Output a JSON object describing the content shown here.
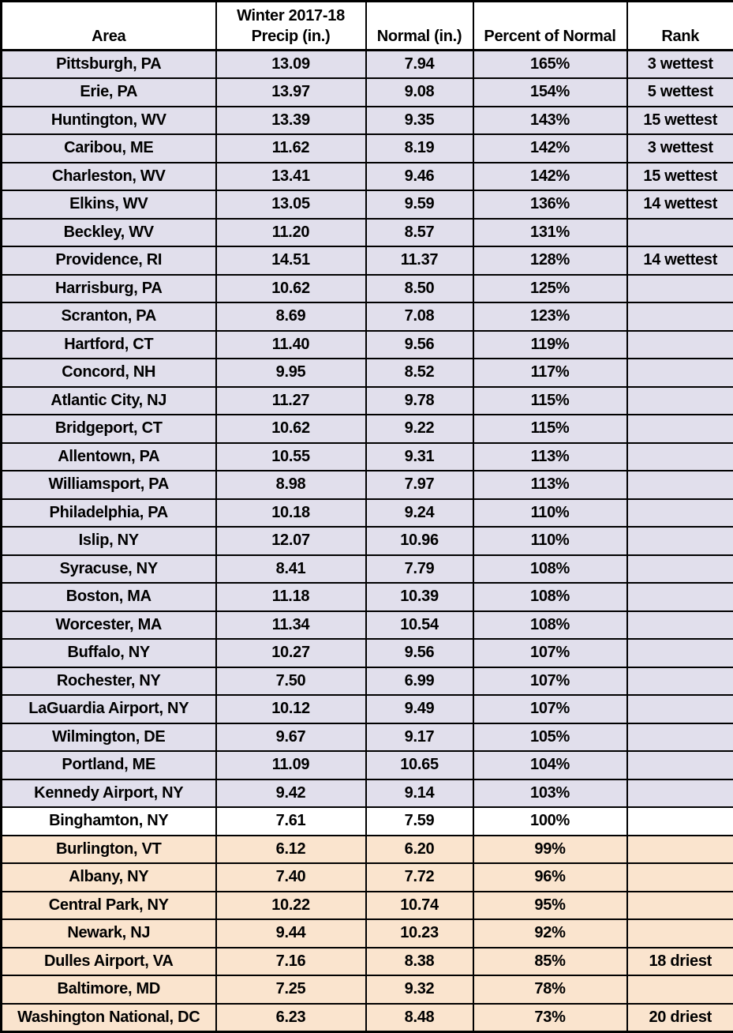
{
  "colors": {
    "above_normal_row": "#E1DFEC",
    "at_normal_row": "#FFFFFF",
    "below_normal_row": "#FAE4CE",
    "border": "#000000",
    "text": "#000000"
  },
  "chart_data": {
    "type": "table",
    "columns": [
      {
        "key": "area",
        "label": "Area"
      },
      {
        "key": "precip",
        "label_line1": "Winter 2017-18",
        "label_line2": "Precip (in.)"
      },
      {
        "key": "normal",
        "label": "Normal (in.)"
      },
      {
        "key": "percent",
        "label": "Percent of Normal"
      },
      {
        "key": "rank",
        "label": "Rank"
      }
    ],
    "rows": [
      {
        "area": "Pittsburgh, PA",
        "precip": "13.09",
        "normal": "7.94",
        "percent": "165%",
        "rank": "3 wettest",
        "tone": "above"
      },
      {
        "area": "Erie, PA",
        "precip": "13.97",
        "normal": "9.08",
        "percent": "154%",
        "rank": "5 wettest",
        "tone": "above"
      },
      {
        "area": "Huntington, WV",
        "precip": "13.39",
        "normal": "9.35",
        "percent": "143%",
        "rank": "15 wettest",
        "tone": "above"
      },
      {
        "area": "Caribou, ME",
        "precip": "11.62",
        "normal": "8.19",
        "percent": "142%",
        "rank": "3 wettest",
        "tone": "above"
      },
      {
        "area": "Charleston, WV",
        "precip": "13.41",
        "normal": "9.46",
        "percent": "142%",
        "rank": "15 wettest",
        "tone": "above"
      },
      {
        "area": "Elkins, WV",
        "precip": "13.05",
        "normal": "9.59",
        "percent": "136%",
        "rank": "14 wettest",
        "tone": "above"
      },
      {
        "area": "Beckley, WV",
        "precip": "11.20",
        "normal": "8.57",
        "percent": "131%",
        "rank": "",
        "tone": "above"
      },
      {
        "area": "Providence, RI",
        "precip": "14.51",
        "normal": "11.37",
        "percent": "128%",
        "rank": "14 wettest",
        "tone": "above"
      },
      {
        "area": "Harrisburg, PA",
        "precip": "10.62",
        "normal": "8.50",
        "percent": "125%",
        "rank": "",
        "tone": "above"
      },
      {
        "area": "Scranton, PA",
        "precip": "8.69",
        "normal": "7.08",
        "percent": "123%",
        "rank": "",
        "tone": "above"
      },
      {
        "area": "Hartford, CT",
        "precip": "11.40",
        "normal": "9.56",
        "percent": "119%",
        "rank": "",
        "tone": "above"
      },
      {
        "area": "Concord, NH",
        "precip": "9.95",
        "normal": "8.52",
        "percent": "117%",
        "rank": "",
        "tone": "above"
      },
      {
        "area": "Atlantic City, NJ",
        "precip": "11.27",
        "normal": "9.78",
        "percent": "115%",
        "rank": "",
        "tone": "above"
      },
      {
        "area": "Bridgeport, CT",
        "precip": "10.62",
        "normal": "9.22",
        "percent": "115%",
        "rank": "",
        "tone": "above"
      },
      {
        "area": "Allentown, PA",
        "precip": "10.55",
        "normal": "9.31",
        "percent": "113%",
        "rank": "",
        "tone": "above"
      },
      {
        "area": "Williamsport, PA",
        "precip": "8.98",
        "normal": "7.97",
        "percent": "113%",
        "rank": "",
        "tone": "above"
      },
      {
        "area": "Philadelphia, PA",
        "precip": "10.18",
        "normal": "9.24",
        "percent": "110%",
        "rank": "",
        "tone": "above"
      },
      {
        "area": "Islip, NY",
        "precip": "12.07",
        "normal": "10.96",
        "percent": "110%",
        "rank": "",
        "tone": "above"
      },
      {
        "area": "Syracuse, NY",
        "precip": "8.41",
        "normal": "7.79",
        "percent": "108%",
        "rank": "",
        "tone": "above"
      },
      {
        "area": "Boston, MA",
        "precip": "11.18",
        "normal": "10.39",
        "percent": "108%",
        "rank": "",
        "tone": "above"
      },
      {
        "area": "Worcester, MA",
        "precip": "11.34",
        "normal": "10.54",
        "percent": "108%",
        "rank": "",
        "tone": "above"
      },
      {
        "area": "Buffalo, NY",
        "precip": "10.27",
        "normal": "9.56",
        "percent": "107%",
        "rank": "",
        "tone": "above"
      },
      {
        "area": "Rochester, NY",
        "precip": "7.50",
        "normal": "6.99",
        "percent": "107%",
        "rank": "",
        "tone": "above"
      },
      {
        "area": "LaGuardia Airport, NY",
        "precip": "10.12",
        "normal": "9.49",
        "percent": "107%",
        "rank": "",
        "tone": "above"
      },
      {
        "area": "Wilmington, DE",
        "precip": "9.67",
        "normal": "9.17",
        "percent": "105%",
        "rank": "",
        "tone": "above"
      },
      {
        "area": "Portland, ME",
        "precip": "11.09",
        "normal": "10.65",
        "percent": "104%",
        "rank": "",
        "tone": "above"
      },
      {
        "area": "Kennedy Airport, NY",
        "precip": "9.42",
        "normal": "9.14",
        "percent": "103%",
        "rank": "",
        "tone": "above"
      },
      {
        "area": "Binghamton, NY",
        "precip": "7.61",
        "normal": "7.59",
        "percent": "100%",
        "rank": "",
        "tone": "at"
      },
      {
        "area": "Burlington, VT",
        "precip": "6.12",
        "normal": "6.20",
        "percent": "99%",
        "rank": "",
        "tone": "below"
      },
      {
        "area": "Albany, NY",
        "precip": "7.40",
        "normal": "7.72",
        "percent": "96%",
        "rank": "",
        "tone": "below"
      },
      {
        "area": "Central Park, NY",
        "precip": "10.22",
        "normal": "10.74",
        "percent": "95%",
        "rank": "",
        "tone": "below"
      },
      {
        "area": "Newark, NJ",
        "precip": "9.44",
        "normal": "10.23",
        "percent": "92%",
        "rank": "",
        "tone": "below"
      },
      {
        "area": "Dulles Airport, VA",
        "precip": "7.16",
        "normal": "8.38",
        "percent": "85%",
        "rank": "18 driest",
        "tone": "below"
      },
      {
        "area": "Baltimore, MD",
        "precip": "7.25",
        "normal": "9.32",
        "percent": "78%",
        "rank": "",
        "tone": "below"
      },
      {
        "area": "Washington National, DC",
        "precip": "6.23",
        "normal": "8.48",
        "percent": "73%",
        "rank": "20 driest",
        "tone": "below"
      }
    ]
  }
}
